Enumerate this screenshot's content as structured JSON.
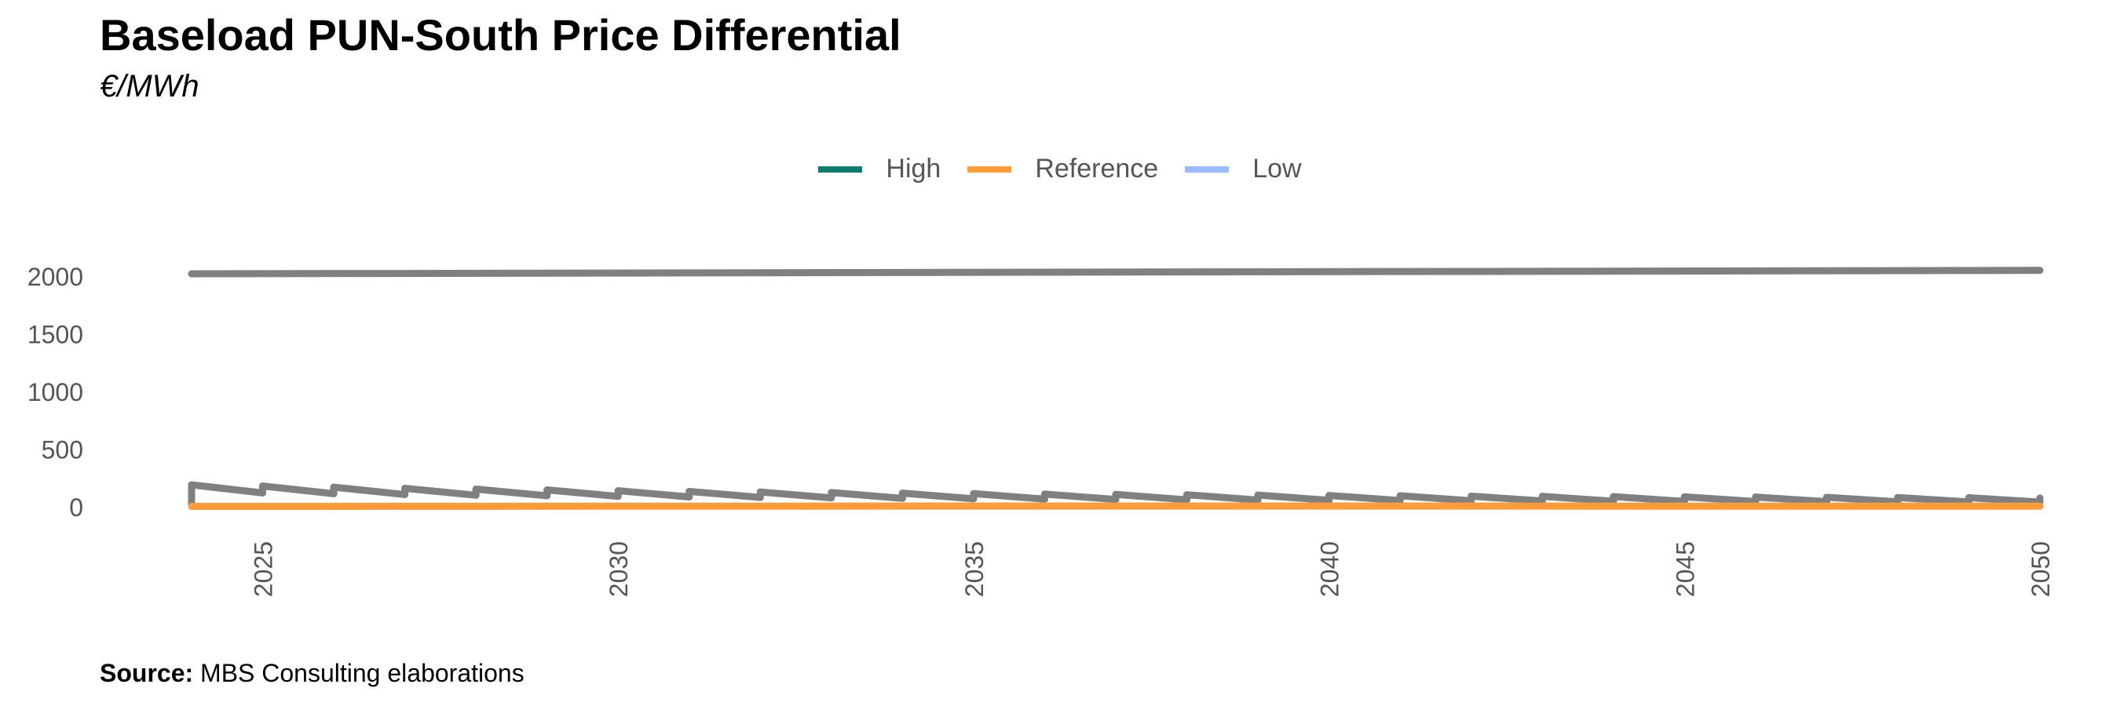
{
  "chart_data": {
    "type": "line",
    "title": "Baseload PUN-South Price Differential",
    "subtitle": "€/MWh",
    "x_ticks": [
      2025,
      2030,
      2035,
      2040,
      2045,
      2050
    ],
    "y_ticks": [
      0,
      500,
      1000,
      1500,
      2000
    ],
    "xlim": [
      2024,
      2050
    ],
    "ylim": [
      0,
      2000
    ],
    "grid": false,
    "legend_position": "top-center",
    "legend": [
      {
        "label": "High",
        "color": "#0f7d70"
      },
      {
        "label": "Reference",
        "color": "#ff9b39"
      },
      {
        "label": "Low",
        "color": "#99bbff"
      }
    ],
    "series": [
      {
        "color": "#808080",
        "x": [
          2024,
          2050
        ],
        "y": [
          2020,
          2050
        ]
      },
      {
        "color": "#808080",
        "style": "sawtooth",
        "x": [
          2024,
          2025,
          2026,
          2027,
          2028,
          2029,
          2030,
          2031,
          2032,
          2033,
          2034,
          2035,
          2036,
          2037,
          2038,
          2039,
          2040,
          2041,
          2042,
          2043,
          2044,
          2045,
          2046,
          2047,
          2048,
          2049,
          2050
        ],
        "y_start": [
          190,
          180,
          170,
          160,
          153,
          146,
          139,
          133,
          128,
          123,
          118,
          114,
          110,
          107,
          104,
          101,
          98,
          95,
          92,
          90,
          88,
          86,
          84,
          82,
          80,
          78,
          76
        ],
        "y_end": [
          120,
          113,
          106,
          100,
          95,
          90,
          85,
          81,
          77,
          73,
          69,
          66,
          63,
          60,
          58,
          56,
          54,
          52,
          50,
          48,
          46,
          45,
          44,
          43,
          42,
          41,
          40
        ]
      },
      {
        "name": "Reference",
        "color": "#ff9b39",
        "x": [
          2024,
          2030,
          2035,
          2040,
          2045,
          2050
        ],
        "y": [
          3,
          5,
          6,
          6,
          5,
          5
        ]
      }
    ]
  },
  "source": {
    "label": "Source:",
    "text": " MBS Consulting elaborations"
  }
}
